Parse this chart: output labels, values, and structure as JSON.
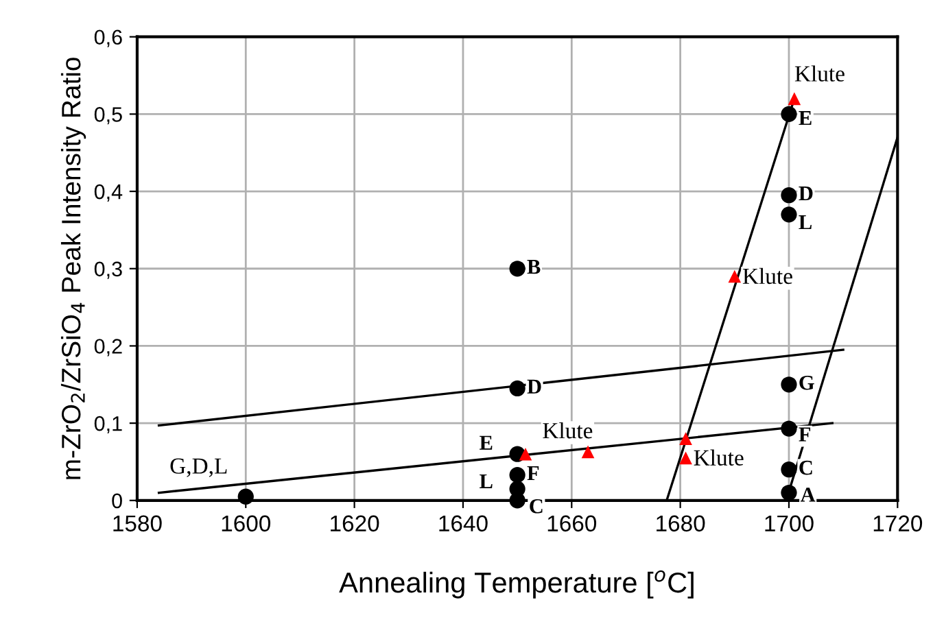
{
  "chart_data": {
    "type": "scatter",
    "xlabel": "Annealing Temperature [$^{o}$C]",
    "ylabel": "m-ZrO$_{2}$/ZrSiO$_{4}$ Peak Intensity Ratio",
    "xlim": [
      1580,
      1720
    ],
    "xticks": [
      1580,
      1600,
      1620,
      1640,
      1660,
      1680,
      1700,
      1720
    ],
    "ylim": [
      0,
      0.6
    ],
    "yticks": [
      0,
      {
        "value": 0.1,
        "label": "0,1"
      },
      {
        "value": 0.2,
        "label": "0,2"
      },
      {
        "value": 0.3,
        "label": "0,3"
      },
      {
        "value": 0.4,
        "label": "0,4"
      },
      {
        "value": 0.5,
        "label": "0,5"
      },
      {
        "value": 0.6,
        "label": "0,6"
      }
    ],
    "grid": true,
    "legend": false,
    "series": [
      {
        "type": "line",
        "color": "#000000",
        "marker": "none",
        "x": [
          1584,
          1710
        ],
        "values": [
          0.097,
          0.195
        ]
      },
      {
        "type": "line",
        "color": "#000000",
        "marker": "none",
        "x": [
          1584,
          1708
        ],
        "values": [
          0.01,
          0.1
        ]
      },
      {
        "type": "line",
        "color": "#000000",
        "marker": "none",
        "x": [
          1677.5,
          1701
        ],
        "values": [
          0,
          0.52
        ]
      },
      {
        "type": "line",
        "color": "#000000",
        "marker": "none",
        "x": [
          1699.5,
          1720
        ],
        "values": [
          0,
          0.47
        ]
      },
      {
        "color": "#000000",
        "marker": "circle",
        "x": [
          1600,
          1650,
          1650,
          1650,
          1650,
          1650,
          1650,
          1700,
          1700,
          1700,
          1700,
          1700,
          1700,
          1700
        ],
        "values": [
          0.005,
          0.3,
          0.145,
          0.06,
          0.033,
          0.015,
          0.0,
          0.5,
          0.395,
          0.37,
          0.15,
          0.093,
          0.04,
          0.01
        ]
      },
      {
        "color": "#ff0000",
        "marker": "triangle",
        "x": [
          1651.5,
          1663,
          1681,
          1681,
          1690,
          1701
        ],
        "values": [
          0.06,
          0.063,
          0.08,
          0.055,
          0.29,
          0.52
        ]
      }
    ],
    "annotations": [
      {
        "text": "G,D,L",
        "x": 1600,
        "y": 0.005
      },
      {
        "text": "B",
        "x": 1650,
        "y": 0.3
      },
      {
        "text": "D",
        "x": 1650,
        "y": 0.145
      },
      {
        "text": "E",
        "x": 1650,
        "y": 0.06
      },
      {
        "text": "F",
        "x": 1650,
        "y": 0.033
      },
      {
        "text": "L",
        "x": 1650,
        "y": 0.015
      },
      {
        "text": "C",
        "x": 1650,
        "y": 0.0
      },
      {
        "text": "E",
        "x": 1700,
        "y": 0.5
      },
      {
        "text": "D",
        "x": 1700,
        "y": 0.395
      },
      {
        "text": "L",
        "x": 1700,
        "y": 0.37
      },
      {
        "text": "G",
        "x": 1700,
        "y": 0.15
      },
      {
        "text": "F",
        "x": 1700,
        "y": 0.093
      },
      {
        "text": "C",
        "x": 1700,
        "y": 0.04
      },
      {
        "text": "A",
        "x": 1700,
        "y": 0.01
      },
      {
        "text": "Klute",
        "x": 1663,
        "y": 0.063
      },
      {
        "text": "Klute",
        "x": 1681,
        "y": 0.055
      },
      {
        "text": "Klute",
        "x": 1690,
        "y": 0.29
      },
      {
        "text": "Klute",
        "x": 1701,
        "y": 0.52
      }
    ]
  }
}
